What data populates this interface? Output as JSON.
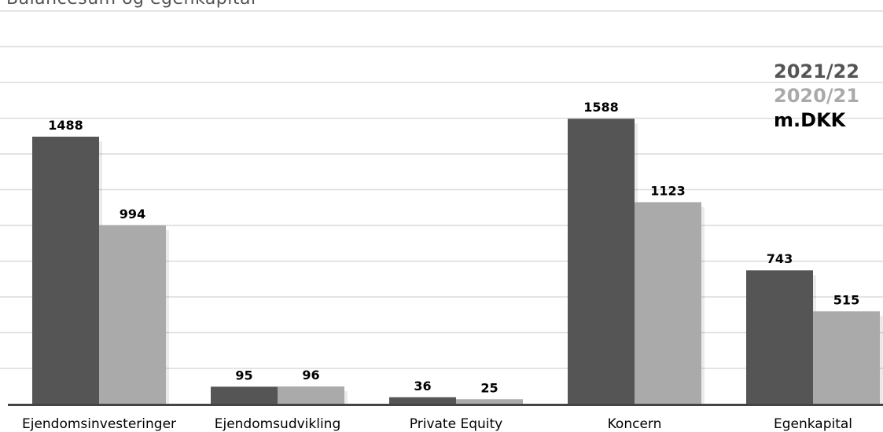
{
  "chart_data": {
    "type": "bar",
    "title": "Balancesum og egenkapital",
    "categories": [
      "Ejendomsinvesteringer",
      "Ejendomsudvikling",
      "Private Equity",
      "Koncern",
      "Egenkapital"
    ],
    "series": [
      {
        "name": "2021/22",
        "values": [
          1488,
          95,
          36,
          1588,
          743
        ],
        "color": "#555555"
      },
      {
        "name": "2020/21",
        "values": [
          994,
          96,
          25,
          1123,
          515
        ],
        "color": "#aaaaaa"
      }
    ],
    "unit": "m.DKK",
    "ylim": [
      0,
      2000
    ],
    "grid": true,
    "legend_position": "top-right"
  }
}
